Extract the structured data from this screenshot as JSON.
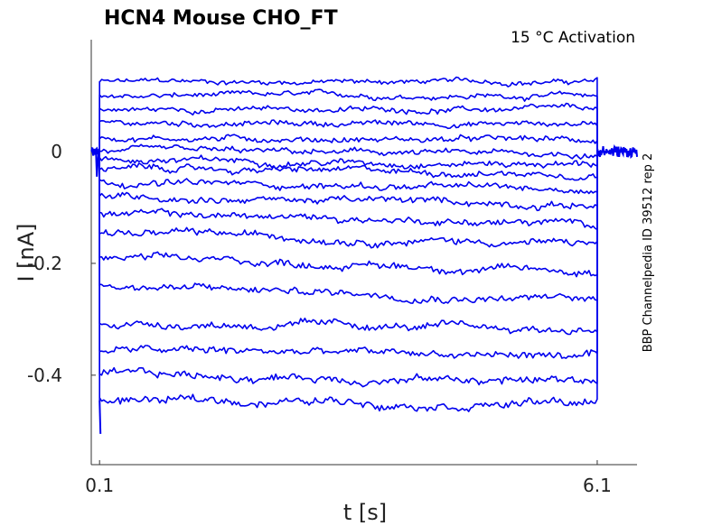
{
  "chart_data": {
    "type": "line",
    "title": "HCN4  Mouse  CHO_FT",
    "subtitle": "15 °C  Activation",
    "side_label": "BBP Channelpedia ID 39512 rep 2",
    "xlabel": "t [s]",
    "ylabel": "I [nA]",
    "x_ticks": [
      "0.1",
      "6.1"
    ],
    "y_ticks": [
      "0",
      "-0.2",
      "-0.4"
    ],
    "xlim": [
      0.0,
      6.58
    ],
    "ylim": [
      -0.56,
      0.2
    ],
    "color": "#0000ee",
    "grid": false,
    "pulse_start_s": 0.1,
    "pulse_end_s": 6.1,
    "series_levels": [
      0.125,
      0.1,
      0.075,
      0.05,
      0.025,
      0.0,
      -0.015,
      -0.03,
      -0.055,
      -0.08,
      -0.11,
      -0.145,
      -0.19,
      -0.24,
      -0.305,
      -0.355,
      -0.4,
      -0.445
    ],
    "series_end_levels": [
      0.125,
      0.1,
      0.075,
      0.05,
      0.02,
      -0.005,
      -0.022,
      -0.04,
      -0.068,
      -0.095,
      -0.13,
      -0.165,
      -0.215,
      -0.265,
      -0.32,
      -0.365,
      -0.41,
      -0.45
    ]
  }
}
